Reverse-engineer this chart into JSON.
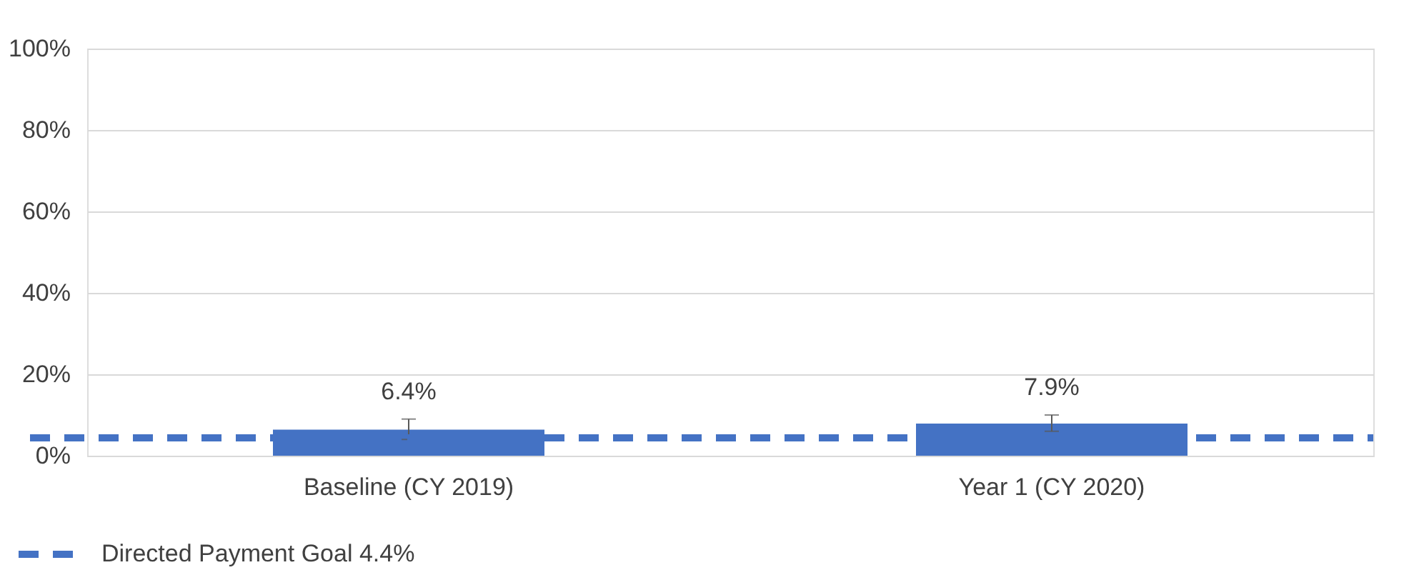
{
  "chart_data": {
    "type": "bar",
    "categories": [
      "Baseline (CY 2019)",
      "Year 1 (CY 2020)"
    ],
    "values": [
      6.4,
      7.9
    ],
    "value_labels": [
      "6.4%",
      "7.9%"
    ],
    "errors": [
      [
        4,
        9
      ],
      [
        6,
        10
      ]
    ],
    "color": "#4472c4",
    "ylim": [
      0,
      100
    ],
    "yticks": [
      {
        "value": 0,
        "label": "0%"
      },
      {
        "value": 20,
        "label": "20%"
      },
      {
        "value": 40,
        "label": "40%"
      },
      {
        "value": 60,
        "label": "60%"
      },
      {
        "value": 80,
        "label": "80%"
      },
      {
        "value": 100,
        "label": "100%"
      }
    ],
    "grid": "y",
    "legend": "bottom left",
    "ref_lines": [
      {
        "axis": "y",
        "value": 4.4,
        "label": "Directed Payment Goal 4.4%",
        "color": "#4472c4",
        "line_style": "dashed"
      }
    ]
  }
}
